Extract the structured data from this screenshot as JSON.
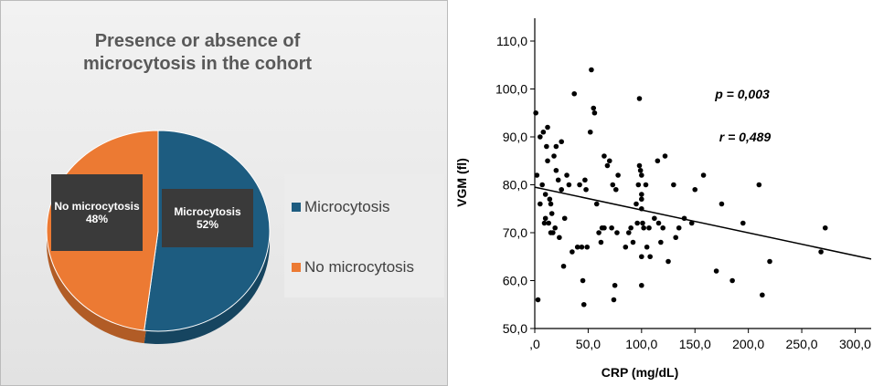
{
  "chart_data": [
    {
      "type": "pie",
      "title": "Presence or absence of microcytosis in the cohort",
      "categories": [
        "Microcytosis",
        "No microcytosis"
      ],
      "values": [
        52,
        48
      ],
      "value_labels": [
        "52%",
        "48%"
      ],
      "colors": [
        "#1d5c80",
        "#ec7a33"
      ],
      "legend": "right"
    },
    {
      "type": "scatter",
      "xlabel": "CRP (mg/dL)",
      "ylabel": "VGM (fl)",
      "annotations": [
        "p = 0,003",
        "r = 0,489"
      ],
      "color": "#000000",
      "x": [
        1,
        2,
        3,
        5,
        5,
        7,
        8,
        9,
        10,
        10,
        11,
        12,
        12,
        13,
        14,
        15,
        15,
        16,
        17,
        18,
        19,
        20,
        20,
        22,
        23,
        25,
        25,
        27,
        28,
        30,
        32,
        35,
        37,
        40,
        42,
        44,
        45,
        46,
        47,
        48,
        49,
        52,
        53,
        55,
        56,
        58,
        60,
        62,
        63,
        65,
        65,
        68,
        70,
        72,
        73,
        74,
        75,
        76,
        77,
        78,
        85,
        88,
        90,
        92,
        95,
        96,
        97,
        98,
        98,
        99,
        100,
        100,
        100,
        100,
        101,
        100,
        100,
        102,
        104,
        105,
        107,
        108,
        112,
        115,
        116,
        118,
        120,
        122,
        125,
        130,
        132,
        135,
        140,
        147,
        150,
        158,
        170,
        175,
        185,
        195,
        210,
        213,
        220,
        268,
        272
      ],
      "values": [
        95,
        82,
        56,
        90,
        76,
        80,
        91,
        72,
        73,
        78,
        88,
        85,
        92,
        72,
        77,
        70,
        76,
        74,
        70,
        86,
        71,
        88,
        83,
        81,
        69,
        89,
        79,
        63,
        73,
        82,
        80,
        66,
        99,
        67,
        80,
        67,
        60,
        55,
        81,
        79,
        67,
        91,
        104,
        96,
        95,
        76,
        70,
        68,
        71,
        71,
        86,
        84,
        85,
        71,
        80,
        56,
        59,
        79,
        70,
        82,
        67,
        70,
        71,
        68,
        76,
        72,
        80,
        98,
        84,
        83,
        82,
        78,
        77,
        75,
        72,
        65,
        59,
        71,
        80,
        67,
        71,
        65,
        73,
        85,
        72,
        68,
        71,
        86,
        64,
        80,
        69,
        71,
        73,
        72,
        79,
        82,
        62,
        76,
        60,
        72,
        80,
        57,
        64,
        66,
        71
      ],
      "trendline": {
        "x": [
          0,
          315
        ],
        "values": [
          79.5,
          64.5
        ]
      },
      "xlim": [
        0,
        315
      ],
      "ylim": [
        50,
        110
      ],
      "xticks": [
        {
          "value": 0,
          "label": ",0"
        },
        {
          "value": 50,
          "label": "50,0"
        },
        {
          "value": 100,
          "label": "100,0"
        },
        {
          "value": 150,
          "label": "150,0"
        },
        {
          "value": 200,
          "label": "200,0"
        },
        {
          "value": 250,
          "label": "250,0"
        },
        {
          "value": 300,
          "label": "300,0"
        }
      ],
      "yticks": [
        {
          "value": 50,
          "label": "50,0"
        },
        {
          "value": 60,
          "label": "60,0"
        },
        {
          "value": 70,
          "label": "70,0"
        },
        {
          "value": 80,
          "label": "80,0"
        },
        {
          "value": 90,
          "label": "90,0"
        },
        {
          "value": 100,
          "label": "100,0"
        },
        {
          "value": 110,
          "label": "110,0"
        }
      ]
    }
  ]
}
